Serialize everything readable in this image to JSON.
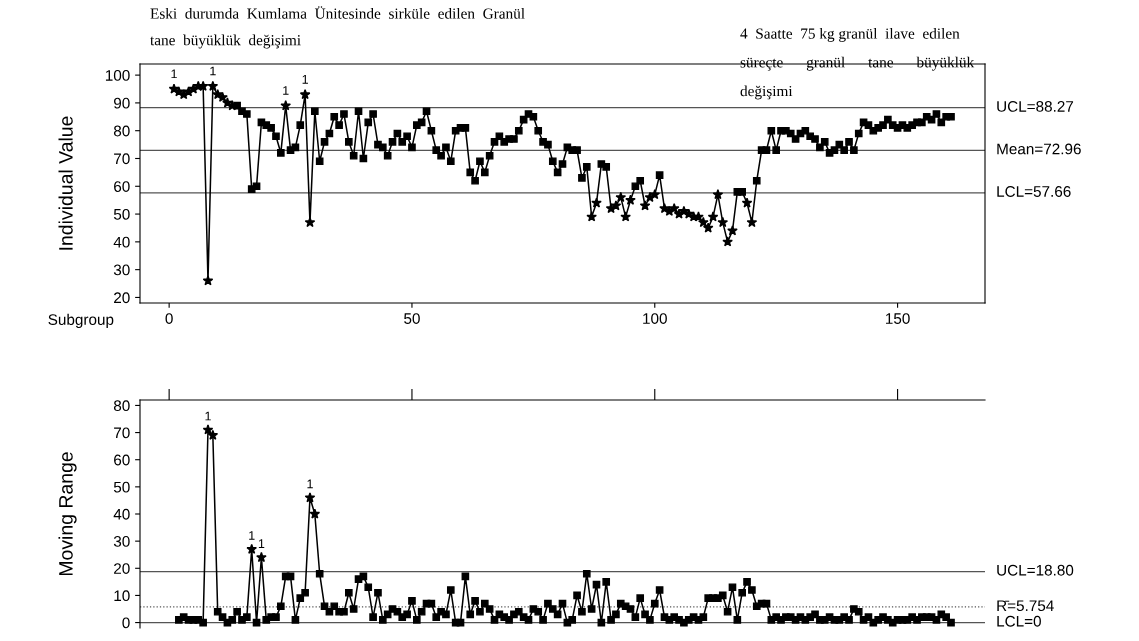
{
  "chart_data": [
    {
      "type": "line",
      "ylabel": "Individual Value",
      "xlabel": "Subgroup",
      "xlim": [
        -6,
        168
      ],
      "xticks": [
        0,
        50,
        100,
        150
      ],
      "ylim": [
        18,
        104
      ],
      "yticks": [
        20,
        30,
        40,
        50,
        60,
        70,
        80,
        90,
        100
      ],
      "grid": false,
      "legend": false,
      "line_style": "solid",
      "series": [
        {
          "type": "line",
          "color": "#000000",
          "marker": "square",
          "x": [
            1,
            2,
            3,
            4,
            5,
            6,
            7,
            8,
            9,
            10,
            11,
            12,
            13,
            14,
            15,
            16,
            17,
            18,
            19,
            20,
            21,
            22,
            23,
            24,
            25,
            26,
            27,
            28,
            29,
            30,
            31,
            32,
            33,
            34,
            35,
            36,
            37,
            38,
            39,
            40,
            41,
            42,
            43,
            44,
            45,
            46,
            47,
            48,
            49,
            50,
            51,
            52,
            53,
            54,
            55,
            56,
            57,
            58,
            59,
            60,
            61,
            62,
            63,
            64,
            65,
            66,
            67,
            68,
            69,
            70,
            71,
            72,
            73,
            74,
            75,
            76,
            77,
            78,
            79,
            80,
            81,
            82,
            83,
            84,
            85,
            86,
            87,
            88,
            89,
            90,
            91,
            92,
            93,
            94,
            95,
            96,
            97,
            98,
            99,
            100,
            101,
            102,
            103,
            104,
            105,
            106,
            107,
            108,
            109,
            110,
            111,
            112,
            113,
            114,
            115,
            116,
            117,
            118,
            119,
            120,
            121,
            122,
            123,
            124,
            125,
            126,
            127,
            128,
            129,
            130,
            131,
            132,
            133,
            134,
            135,
            136,
            137,
            138,
            139,
            140,
            141,
            142,
            143,
            144,
            145,
            146,
            147,
            148,
            149,
            150,
            151,
            152,
            153,
            154,
            155,
            156,
            157,
            158,
            159,
            160,
            161
          ],
          "values": [
            95,
            94,
            93,
            94,
            95,
            96,
            96,
            26,
            96,
            93,
            92,
            90,
            89,
            89,
            87,
            86,
            59,
            60,
            83,
            82,
            81,
            78,
            72,
            89,
            73,
            74,
            82,
            93,
            47,
            87,
            69,
            76,
            79,
            85,
            82,
            86,
            76,
            71,
            87,
            70,
            83,
            86,
            75,
            74,
            71,
            76,
            79,
            76,
            78,
            74,
            82,
            83,
            87,
            80,
            73,
            71,
            74,
            69,
            80,
            81,
            81,
            65,
            62,
            69,
            65,
            71,
            76,
            78,
            76,
            77,
            77,
            80,
            84,
            86,
            85,
            80,
            76,
            75,
            69,
            65,
            68,
            74,
            73,
            73,
            63,
            67,
            49,
            54,
            68,
            67,
            52,
            53,
            56,
            49,
            55,
            60,
            62,
            53,
            56,
            57,
            64,
            52,
            51,
            52,
            50,
            51,
            50,
            49,
            49,
            47,
            45,
            49,
            57,
            47,
            40,
            44,
            58,
            58,
            54,
            47,
            62,
            73,
            73,
            80,
            73,
            80,
            80,
            79,
            77,
            79,
            80,
            78,
            77,
            74,
            76,
            72,
            73,
            75,
            73,
            76,
            73,
            79,
            83,
            82,
            80,
            81,
            82,
            84,
            82,
            81,
            82,
            81,
            82,
            83,
            83,
            85,
            84,
            86,
            83,
            85,
            85
          ]
        },
        {
          "type": "scatter",
          "color": "#000000",
          "marker": "star",
          "x": [
            1,
            2,
            3,
            4,
            5,
            6,
            7,
            8,
            9,
            10,
            11,
            12,
            13,
            24,
            28,
            29,
            87,
            88,
            91,
            92,
            93,
            94,
            95,
            98,
            99,
            100,
            102,
            103,
            104,
            105,
            106,
            107,
            108,
            109,
            110,
            111,
            112,
            113,
            114,
            115,
            116,
            119,
            120
          ],
          "values": [
            95,
            94,
            93,
            94,
            95,
            96,
            96,
            26,
            96,
            93,
            92,
            90,
            89,
            89,
            93,
            47,
            49,
            54,
            52,
            53,
            56,
            49,
            55,
            53,
            56,
            57,
            52,
            51,
            52,
            50,
            51,
            50,
            49,
            49,
            47,
            45,
            49,
            57,
            47,
            40,
            44,
            54,
            47
          ]
        }
      ],
      "ref_lines": [
        {
          "axis": "y",
          "value": 88.27,
          "label": "UCL=88.27",
          "color": "#555555",
          "line_style": "solid"
        },
        {
          "axis": "y",
          "value": 72.96,
          "label": "Mean=72.96",
          "color": "#555555",
          "line_style": "solid"
        },
        {
          "axis": "y",
          "value": 57.66,
          "label": "LCL=57.66",
          "color": "#555555",
          "line_style": "solid"
        }
      ],
      "annotations": [
        "Eski  durumda  Kumlama  Ünitesinde  sirküle  edilen  Granül\ntane  büyüklük  değişimi",
        "4  Saatte  75 kg granül  ilave  edilen\nsüreçte      granül      tane      büyüklük\ndeğişimi",
        {
          "text": "1",
          "x": 1,
          "y": 98
        },
        {
          "text": "1",
          "x": 9,
          "y": 99
        },
        {
          "text": "1",
          "x": 24,
          "y": 92
        },
        {
          "text": "1",
          "x": 28,
          "y": 96
        }
      ]
    },
    {
      "type": "line",
      "ylabel": "Moving Range",
      "xlim": [
        -6,
        168
      ],
      "xticks": [
        {
          "value": 0,
          "label": null
        },
        {
          "value": 50,
          "label": null
        },
        {
          "value": 100,
          "label": null
        },
        {
          "value": 150,
          "label": null
        }
      ],
      "ylim": [
        -2,
        82
      ],
      "yticks": [
        0,
        10,
        20,
        30,
        40,
        50,
        60,
        70,
        80
      ],
      "tick_labels": "y",
      "grid": false,
      "legend": false,
      "line_style": "solid",
      "series": [
        {
          "type": "line",
          "color": "#000000",
          "marker": "square",
          "x": [
            2,
            3,
            4,
            5,
            6,
            7,
            8,
            9,
            10,
            11,
            12,
            13,
            14,
            15,
            16,
            17,
            18,
            19,
            20,
            21,
            22,
            23,
            24,
            25,
            26,
            27,
            28,
            29,
            30,
            31,
            32,
            33,
            34,
            35,
            36,
            37,
            38,
            39,
            40,
            41,
            42,
            43,
            44,
            45,
            46,
            47,
            48,
            49,
            50,
            51,
            52,
            53,
            54,
            55,
            56,
            57,
            58,
            59,
            60,
            61,
            62,
            63,
            64,
            65,
            66,
            67,
            68,
            69,
            70,
            71,
            72,
            73,
            74,
            75,
            76,
            77,
            78,
            79,
            80,
            81,
            82,
            83,
            84,
            85,
            86,
            87,
            88,
            89,
            90,
            91,
            92,
            93,
            94,
            95,
            96,
            97,
            98,
            99,
            100,
            101,
            102,
            103,
            104,
            105,
            106,
            107,
            108,
            109,
            110,
            111,
            112,
            113,
            114,
            115,
            116,
            117,
            118,
            119,
            120,
            121,
            122,
            123,
            124,
            125,
            126,
            127,
            128,
            129,
            130,
            131,
            132,
            133,
            134,
            135,
            136,
            137,
            138,
            139,
            140,
            141,
            142,
            143,
            144,
            145,
            146,
            147,
            148,
            149,
            150,
            151,
            152,
            153,
            154,
            155,
            156,
            157,
            158,
            159,
            160,
            161
          ],
          "values": [
            1,
            2,
            1,
            1,
            1,
            0,
            71,
            69,
            4,
            2,
            0,
            1,
            4,
            1,
            2,
            27,
            0,
            24,
            1,
            2,
            2,
            6,
            17,
            17,
            1,
            9,
            11,
            46,
            40,
            18,
            6,
            4,
            6,
            4,
            4,
            11,
            5,
            16,
            17,
            13,
            2,
            11,
            1,
            3,
            5,
            4,
            2,
            3,
            8,
            1,
            4,
            7,
            7,
            2,
            4,
            3,
            12,
            0,
            0,
            17,
            3,
            8,
            4,
            7,
            5,
            1,
            3,
            2,
            1,
            3,
            4,
            2,
            1,
            5,
            4,
            1,
            7,
            5,
            3,
            7,
            0,
            1,
            10,
            4,
            18,
            5,
            14,
            0,
            15,
            1,
            3,
            7,
            6,
            5,
            2,
            9,
            3,
            1,
            7,
            12,
            2,
            1,
            2,
            1,
            0,
            1,
            2,
            1,
            2,
            9,
            9,
            9,
            10,
            4,
            13,
            1,
            11,
            15,
            12,
            6,
            7,
            7,
            1,
            2,
            1,
            2,
            2,
            1,
            2,
            1,
            2,
            3,
            1,
            1,
            2,
            1,
            1,
            2,
            1,
            5,
            4,
            1,
            2,
            0,
            1,
            2,
            1,
            0,
            1,
            1,
            1,
            2,
            1,
            2,
            2,
            2,
            1,
            3,
            2,
            0
          ]
        },
        {
          "type": "scatter",
          "color": "#000000",
          "marker": "star",
          "x": [
            8,
            9,
            17,
            19,
            29,
            30
          ],
          "values": [
            71,
            69,
            27,
            24,
            46,
            40
          ]
        }
      ],
      "ref_lines": [
        {
          "axis": "y",
          "value": 18.8,
          "label": "UCL=18.80",
          "color": "#555555",
          "line_style": "solid"
        },
        {
          "axis": "y",
          "value": 5.754,
          "label": "R̄=5.754",
          "color": "#555555",
          "line_style": "dotted"
        },
        {
          "axis": "y",
          "value": 0,
          "label": "LCL=0",
          "color": "#555555",
          "line_style": "solid"
        }
      ],
      "annotations": [
        {
          "text": "1",
          "x": 8,
          "y": 71
        },
        {
          "text": "1",
          "x": 17,
          "y": 27
        },
        {
          "text": "1",
          "x": 19,
          "y": 24
        },
        {
          "text": "1",
          "x": 29,
          "y": 46
        }
      ]
    }
  ]
}
